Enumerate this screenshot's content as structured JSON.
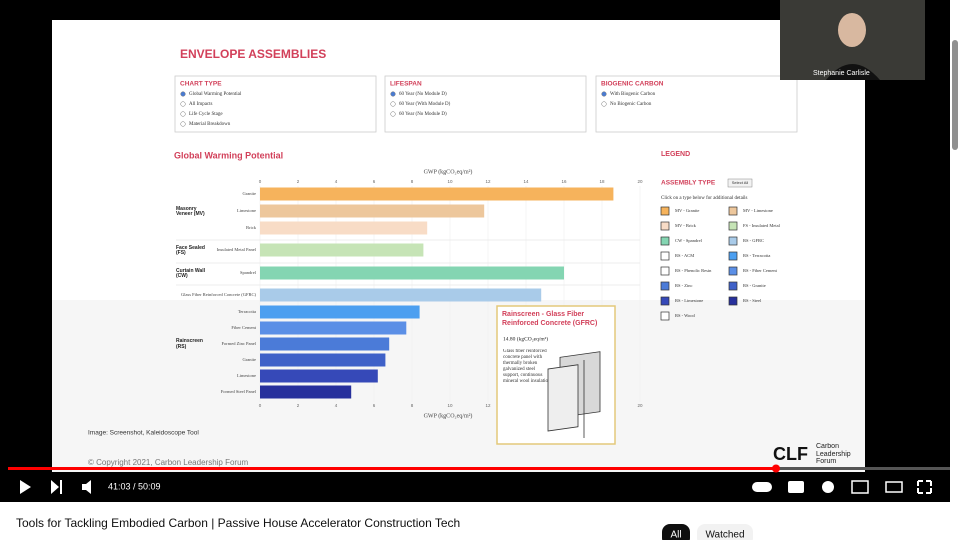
{
  "slide": {
    "title": "ENVELOPE ASSEMBLIES",
    "panels": [
      {
        "heading": "CHART TYPE",
        "options": [
          "Global Warming Potential",
          "All Impacts",
          "Life Cycle Stage",
          "Material Breakdown"
        ],
        "selected": 0
      },
      {
        "heading": "LIFESPAN",
        "options": [
          "60 Year (No Module D)",
          "60 Year (With Module D)",
          "60 Year (No Module D)"
        ],
        "selected": 0
      },
      {
        "heading": "BIOGENIC CARBON",
        "options": [
          "With Biogenic Carbon",
          "No Biogenic Carbon"
        ],
        "selected": 0
      }
    ],
    "chart": {
      "type": "bar",
      "orientation": "horizontal",
      "title": "Global Warming Potential",
      "x_label_top": "GWP (kgCO₂eq/m²)",
      "x_label_bottom": "GWP (kgCO₂eq/m²)",
      "categories": [
        "Granite",
        "Limestone",
        "Brick",
        "Insulated Metal Panel",
        "Spandrel",
        "Glass Fiber Reinforced Concrete (GFRC)",
        "Terracotta",
        "Fiber Cement",
        "Formed Zinc Panel",
        "Granite",
        "Limestone",
        "Formed Steel Panel"
      ],
      "values": [
        18.6,
        11.8,
        8.8,
        8.6,
        16.0,
        14.8,
        8.4,
        7.7,
        6.8,
        6.6,
        6.2,
        4.8
      ],
      "colors": [
        "#f6b35c",
        "#edc79c",
        "#f8dcc6",
        "#c6e4b6",
        "#84d5b2",
        "#a9cbe9",
        "#4c9ff0",
        "#5b8fe6",
        "#4b7bd8",
        "#3f61c8",
        "#3649b8",
        "#27309c"
      ],
      "groups": [
        {
          "label": "Masonry Veneer (MV)",
          "rows": [
            0,
            2
          ]
        },
        {
          "label": "Face Sealed (FS)",
          "rows": [
            3,
            3
          ]
        },
        {
          "label": "Curtain Wall (CW)",
          "rows": [
            4,
            4
          ]
        },
        {
          "label": "Rainscreen (RS)",
          "rows": [
            5,
            11
          ]
        }
      ],
      "xlim": [
        0,
        20
      ],
      "xticks": [
        0,
        2,
        4,
        6,
        8,
        10,
        12,
        14,
        16,
        18,
        20
      ],
      "grid": true
    },
    "tooltip": {
      "title": "Rainscreen - Glass Fiber Reinforced Concrete (GFRC)",
      "value": "14.80 (kgCO₂eq/m²)",
      "description": "Glass fiber reinforced concrete panel with thermally broken galvanized steel support, continuous mineral wool insulation"
    },
    "legend": {
      "heading": "LEGEND",
      "subheading": "ASSEMBLY TYPE",
      "button": "Select All",
      "hint": "Click on a type below for additional details",
      "items": [
        {
          "label": "MV - Granite",
          "color": "#f6b35c"
        },
        {
          "label": "MV - Limestone",
          "color": "#edc79c"
        },
        {
          "label": "MV - Brick",
          "color": "#f8dcc6"
        },
        {
          "label": "FS - Insulated Metal",
          "color": "#c6e4b6"
        },
        {
          "label": "CW - Spandrel",
          "color": "#84d5b2"
        },
        {
          "label": "RS - GFRC",
          "color": "#a9cbe9"
        },
        {
          "label": "RS - ACM",
          "color": "#ffffff"
        },
        {
          "label": "RS - Terracotta",
          "color": "#4c9ff0"
        },
        {
          "label": "RS - Phenolic Resin",
          "color": "#ffffff"
        },
        {
          "label": "RS - Fiber Cement",
          "color": "#5b8fe6"
        },
        {
          "label": "RS - Zinc",
          "color": "#4b7bd8"
        },
        {
          "label": "RS - Granite",
          "color": "#3f61c8"
        },
        {
          "label": "RS - Limestone",
          "color": "#3649b8"
        },
        {
          "label": "RS - Steel",
          "color": "#27309c"
        },
        {
          "label": "RS - Wood",
          "color": "#ffffff"
        }
      ]
    },
    "caption": "Image: Screenshot, Kaleidoscope Tool",
    "copyright": "© Copyright 2021, Carbon Leadership Forum",
    "logo": {
      "mark": "CLF",
      "text": "Carbon Leadership Forum"
    }
  },
  "webcam": {
    "name": "Stephanie Carlisle"
  },
  "player": {
    "time": "41:03 / 50:09"
  },
  "video_title": "Tools for Tackling Embodied Carbon | Passive House Accelerator Construction Tech",
  "chips": [
    "All",
    "Watched"
  ]
}
